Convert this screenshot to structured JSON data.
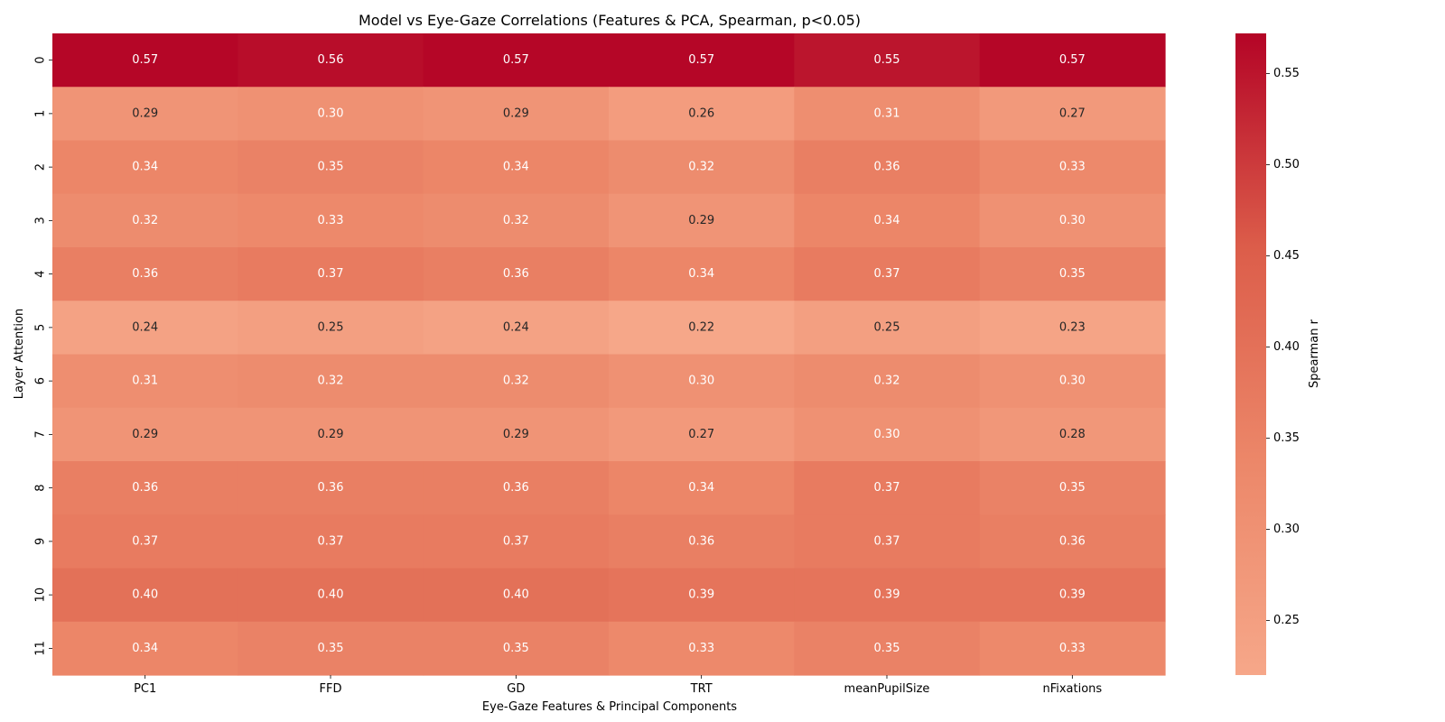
{
  "chart_data": {
    "type": "heatmap",
    "title": "Model vs Eye-Gaze Correlations (Features & PCA, Spearman, p<0.05)",
    "xlabel": "Eye-Gaze Features & Principal Components",
    "ylabel": "Layer Attention",
    "x_categories": [
      "PC1",
      "FFD",
      "GD",
      "TRT",
      "meanPupilSize",
      "nFixations"
    ],
    "y_categories": [
      "0",
      "1",
      "2",
      "3",
      "4",
      "5",
      "6",
      "7",
      "8",
      "9",
      "10",
      "11"
    ],
    "values": [
      [
        0.57,
        0.56,
        0.57,
        0.57,
        0.55,
        0.57
      ],
      [
        0.29,
        0.3,
        0.29,
        0.26,
        0.31,
        0.27
      ],
      [
        0.34,
        0.35,
        0.34,
        0.32,
        0.36,
        0.33
      ],
      [
        0.32,
        0.33,
        0.32,
        0.29,
        0.34,
        0.3
      ],
      [
        0.36,
        0.37,
        0.36,
        0.34,
        0.37,
        0.35
      ],
      [
        0.24,
        0.25,
        0.24,
        0.22,
        0.25,
        0.23
      ],
      [
        0.31,
        0.32,
        0.32,
        0.3,
        0.32,
        0.3
      ],
      [
        0.29,
        0.29,
        0.29,
        0.27,
        0.3,
        0.28
      ],
      [
        0.36,
        0.36,
        0.36,
        0.34,
        0.37,
        0.35
      ],
      [
        0.37,
        0.37,
        0.37,
        0.36,
        0.37,
        0.36
      ],
      [
        0.4,
        0.4,
        0.4,
        0.39,
        0.39,
        0.39
      ],
      [
        0.34,
        0.35,
        0.35,
        0.33,
        0.35,
        0.33
      ]
    ],
    "value_format": "0.00",
    "colorbar": {
      "label": "Spearman r",
      "vmin": 0.22,
      "vmax": 0.572,
      "ticks": [
        0.25,
        0.3,
        0.35,
        0.4,
        0.45,
        0.5,
        0.55
      ],
      "tick_labels": [
        "0.25",
        "0.30",
        "0.35",
        "0.40",
        "0.45",
        "0.50",
        "0.55"
      ],
      "colormap": "coolwarm (upper half)",
      "color_stops": [
        "#f6a789",
        "#ec8769",
        "#dc5d4a",
        "#b40426"
      ]
    },
    "text_colors": {
      "light": "#ffffff",
      "dark": "#262626"
    },
    "grid": false
  }
}
